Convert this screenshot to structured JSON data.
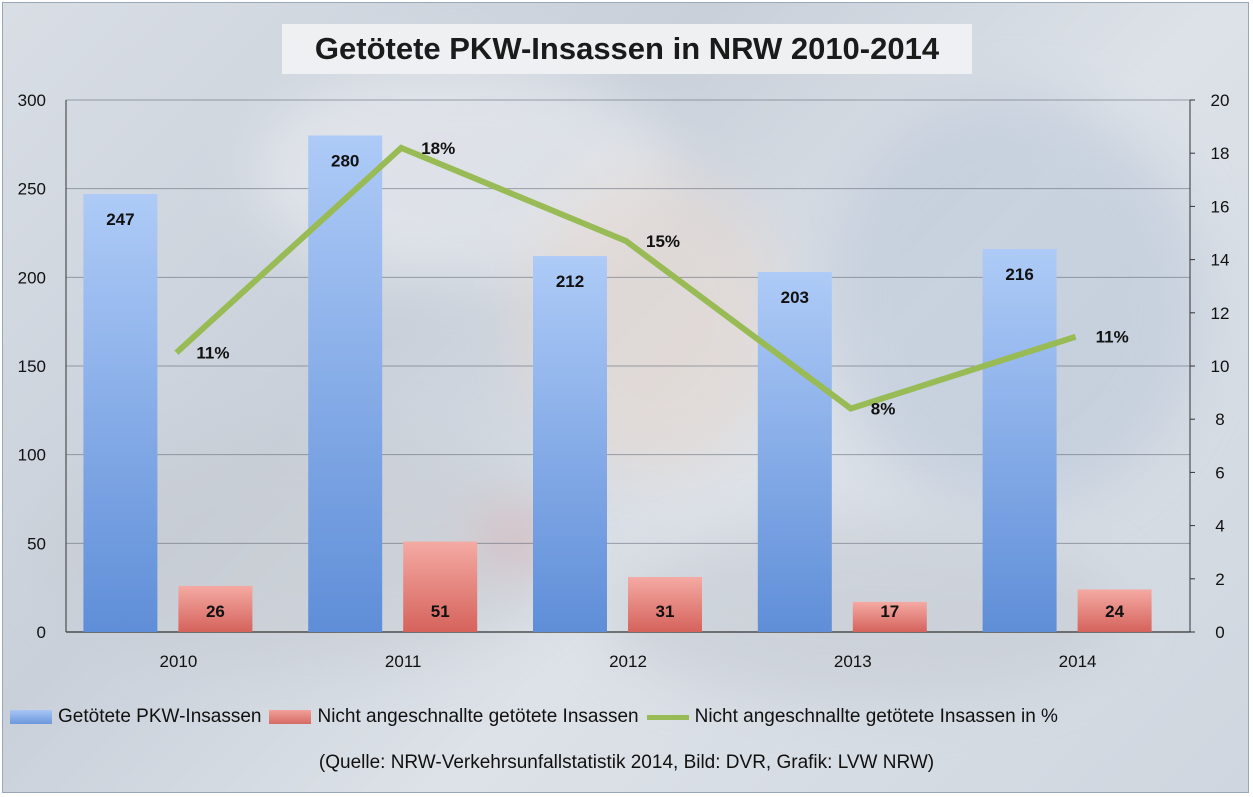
{
  "chart_data": {
    "type": "bar",
    "title": "Getötete PKW-Insassen in NRW 2010-2014",
    "categories": [
      "2010",
      "2011",
      "2012",
      "2013",
      "2014"
    ],
    "series": [
      {
        "name": "Getötete PKW-Insassen",
        "type": "bar",
        "axis": "left",
        "values": [
          247,
          280,
          212,
          203,
          216
        ],
        "color": "#7ea6e6"
      },
      {
        "name": "Nicht angeschnallte getötete Insassen",
        "type": "bar",
        "axis": "left",
        "values": [
          26,
          51,
          31,
          17,
          24
        ],
        "color": "#e07b74"
      },
      {
        "name": "Nicht angeschnallte getötete Insassen in %",
        "type": "line",
        "axis": "right",
        "values": [
          10.5,
          18.2,
          14.7,
          8.4,
          11.1
        ],
        "labels": [
          "11%",
          "18%",
          "15%",
          "8%",
          "11%"
        ],
        "color": "#99bb55"
      }
    ],
    "ylim": [
      0,
      300
    ],
    "y_ticks": [
      "0",
      "50",
      "100",
      "150",
      "200",
      "250",
      "300"
    ],
    "y2lim": [
      0,
      20
    ],
    "y2_ticks": [
      "0",
      "2",
      "4",
      "6",
      "8",
      "10",
      "12",
      "14",
      "16",
      "18",
      "20"
    ],
    "grid": true,
    "legend_position": "bottom"
  },
  "source": "(Quelle: NRW-Verkehrsunfallstatistik 2014, Bild: DVR, Grafik: LVW NRW)"
}
